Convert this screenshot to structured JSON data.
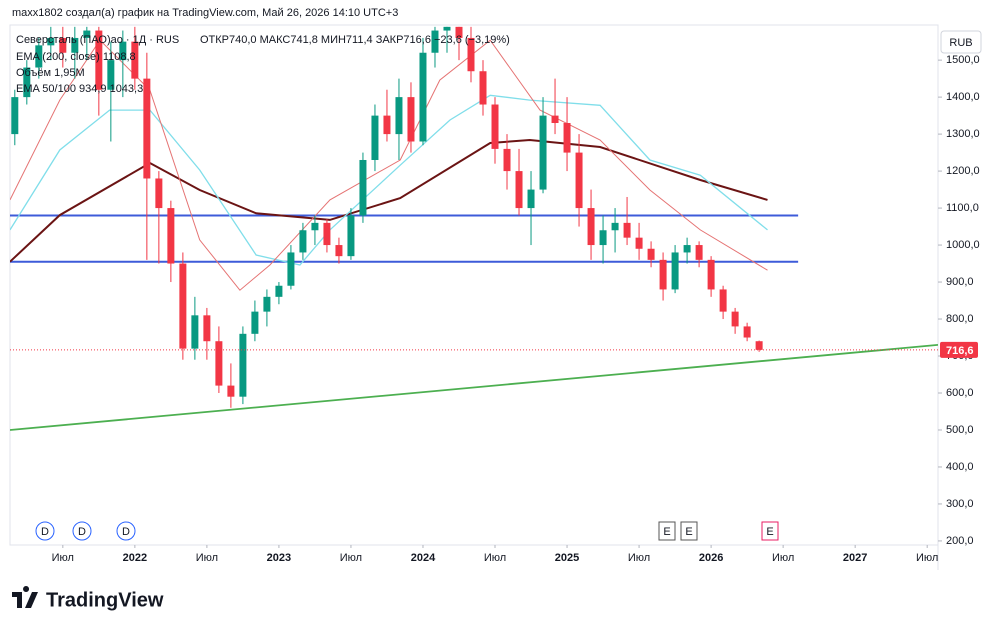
{
  "header": {
    "author_line": "maxx1802 создал(а) график на TradingView.com, Май 26, 2026 14:10 UTC+3"
  },
  "legend": {
    "symbol": "Северсталь (ПАО)ао · 1Д · RUS",
    "ohlc": "ОТКР740,0 МАКС741,8 МИН711,4 ЗАКР716,6 −23,6 (−3,19%)",
    "ema200": "EMA (200, close)  1108,8",
    "volume": "Объём  1,95M",
    "ema50_100": "EMA 50/100  934,9  1043,3"
  },
  "events": {
    "dividends": [
      "D",
      "D",
      "D"
    ],
    "earnings": [
      "E",
      "E",
      "E"
    ]
  },
  "footer": {
    "logo": "TradingView"
  },
  "chart_data": {
    "type": "candlestick",
    "currency": "RUB",
    "last_label": "716,6",
    "up_color": "#089981",
    "down_color": "#f23645",
    "x": [
      2,
      3,
      4,
      5,
      6,
      7,
      8,
      9,
      10,
      11,
      12,
      13,
      14,
      15,
      16,
      17,
      18,
      19,
      20,
      21,
      22,
      23,
      24,
      25,
      26,
      27,
      28,
      29,
      30,
      31,
      32,
      33,
      34,
      35,
      36,
      37,
      38,
      39,
      40,
      41,
      42,
      43,
      44,
      45,
      46,
      47,
      48,
      49,
      50,
      51,
      52,
      53,
      54,
      55,
      56,
      57,
      58,
      59,
      60,
      61,
      62,
      63,
      64
    ],
    "open": [
      1300,
      1400,
      1480,
      1540,
      1560,
      1520,
      1560,
      1580,
      1420,
      1500,
      1550,
      1450,
      1180,
      1100,
      950,
      720,
      810,
      740,
      620,
      590,
      760,
      820,
      860,
      890,
      980,
      1040,
      1060,
      1000,
      970,
      1080,
      1230,
      1350,
      1300,
      1400,
      1280,
      1520,
      1580,
      1590,
      1560,
      1470,
      1380,
      1260,
      1200,
      1100,
      1150,
      1350,
      1330,
      1250,
      1100,
      1000,
      1040,
      1060,
      1020,
      990,
      960,
      880,
      980,
      1000,
      960,
      880,
      820,
      780,
      740
    ],
    "high": [
      1420,
      1500,
      1560,
      1590,
      1590,
      1590,
      1590,
      1590,
      1550,
      1580,
      1590,
      1520,
      1200,
      1120,
      980,
      860,
      830,
      780,
      680,
      780,
      850,
      880,
      900,
      1000,
      1060,
      1080,
      1070,
      1020,
      1100,
      1250,
      1380,
      1420,
      1450,
      1440,
      1560,
      1590,
      1590,
      1590,
      1590,
      1500,
      1400,
      1300,
      1260,
      1200,
      1400,
      1450,
      1400,
      1300,
      1150,
      1080,
      1100,
      1130,
      1060,
      1010,
      980,
      1000,
      1020,
      1010,
      970,
      890,
      830,
      790,
      741.8
    ],
    "low": [
      1270,
      1380,
      1450,
      1500,
      1480,
      1450,
      1500,
      1350,
      1280,
      1400,
      1420,
      960,
      950,
      900,
      690,
      690,
      690,
      600,
      560,
      570,
      740,
      780,
      840,
      880,
      960,
      1000,
      980,
      950,
      960,
      1060,
      1200,
      1280,
      1230,
      1250,
      1270,
      1480,
      1520,
      1500,
      1440,
      1350,
      1220,
      1150,
      1080,
      1000,
      1140,
      1300,
      1200,
      1050,
      960,
      950,
      980,
      1000,
      960,
      940,
      850,
      870,
      950,
      940,
      860,
      800,
      760,
      740,
      711.4
    ],
    "close": [
      1400,
      1480,
      1540,
      1560,
      1520,
      1560,
      1580,
      1420,
      1500,
      1550,
      1450,
      1180,
      1100,
      950,
      720,
      810,
      740,
      620,
      590,
      760,
      820,
      860,
      890,
      980,
      1040,
      1060,
      1000,
      970,
      1080,
      1230,
      1350,
      1300,
      1400,
      1280,
      1520,
      1580,
      1590,
      1560,
      1470,
      1380,
      1260,
      1200,
      1100,
      1150,
      1350,
      1330,
      1250,
      1100,
      1000,
      1040,
      1060,
      1020,
      990,
      960,
      880,
      980,
      1000,
      960,
      880,
      820,
      780,
      750,
      716.6
    ],
    "series": [
      {
        "color": "#6b1414",
        "width": 2,
        "x": [
          1.6,
          5.75,
          13.25,
          17.4,
          22.1,
          28.25,
          34.1,
          41.6,
          44.9,
          50.75,
          59.1,
          64.7
        ],
        "values": [
          955,
          1081,
          1222,
          1149,
          1086,
          1068,
          1127,
          1276,
          1284,
          1265,
          1176,
          1122
        ]
      },
      {
        "color": "#80deea",
        "width": 1.3,
        "x": [
          1.6,
          5.75,
          9.9,
          13.25,
          17.4,
          22.1,
          25.75,
          28.25,
          34.1,
          38.25,
          41.6,
          44.9,
          50.75,
          54.9,
          59.1,
          64.7
        ],
        "values": [
          1041,
          1257,
          1365,
          1365,
          1203,
          973,
          946,
          1041,
          1216,
          1338,
          1405,
          1392,
          1378,
          1230,
          1189,
          1041
        ]
      },
      {
        "color": "#e57373",
        "width": 1,
        "x": [
          1.6,
          5.75,
          9.1,
          13.25,
          17.4,
          20.75,
          23.25,
          28.25,
          34.1,
          37.4,
          41.6,
          45.75,
          50.75,
          54.9,
          59.1,
          64.7
        ],
        "values": [
          1122,
          1392,
          1554,
          1419,
          1014,
          878,
          946,
          1122,
          1230,
          1446,
          1554,
          1365,
          1284,
          1149,
          1041,
          932
        ]
      }
    ],
    "levels": [
      {
        "value": 1080,
        "color": "#3d5bd9"
      },
      {
        "value": 955,
        "color": "#3d5bd9"
      }
    ],
    "level_end": 67.25,
    "trend": {
      "color": "#4caf50",
      "x": [
        1.6,
        78.9
      ],
      "values": [
        500,
        730
      ]
    },
    "xlim": [
      1.6,
      78.9
    ],
    "ylim": [
      189,
      1595
    ],
    "xticks": [
      {
        "value": 6,
        "label": "Июл"
      },
      {
        "value": 12,
        "label": "2022"
      },
      {
        "value": 18,
        "label": "Июл"
      },
      {
        "value": 24,
        "label": "2023"
      },
      {
        "value": 30,
        "label": "Июл"
      },
      {
        "value": 36,
        "label": "2024"
      },
      {
        "value": 42,
        "label": "Июл"
      },
      {
        "value": 48,
        "label": "2025"
      },
      {
        "value": 54,
        "label": "Июл"
      },
      {
        "value": 60,
        "label": "2026"
      },
      {
        "value": 66,
        "label": "Июл"
      },
      {
        "value": 72,
        "label": "2027"
      },
      {
        "value": 78,
        "label": "Июл"
      }
    ],
    "yticks": [
      {
        "value": 200,
        "label": "200,0"
      },
      {
        "value": 300,
        "label": "300,0"
      },
      {
        "value": 400,
        "label": "400,0"
      },
      {
        "value": 500,
        "label": "500,0"
      },
      {
        "value": 600,
        "label": "600,0"
      },
      {
        "value": 700,
        "label": "700,0"
      },
      {
        "value": 800,
        "label": "800,0"
      },
      {
        "value": 900,
        "label": "900,0"
      },
      {
        "value": 1000,
        "label": "1000,0"
      },
      {
        "value": 1100,
        "label": "1100,0"
      },
      {
        "value": 1200,
        "label": "1200,0"
      },
      {
        "value": 1300,
        "label": "1300,0"
      },
      {
        "value": 1400,
        "label": "1400,0"
      },
      {
        "value": 1500,
        "label": "1500,0"
      }
    ]
  }
}
